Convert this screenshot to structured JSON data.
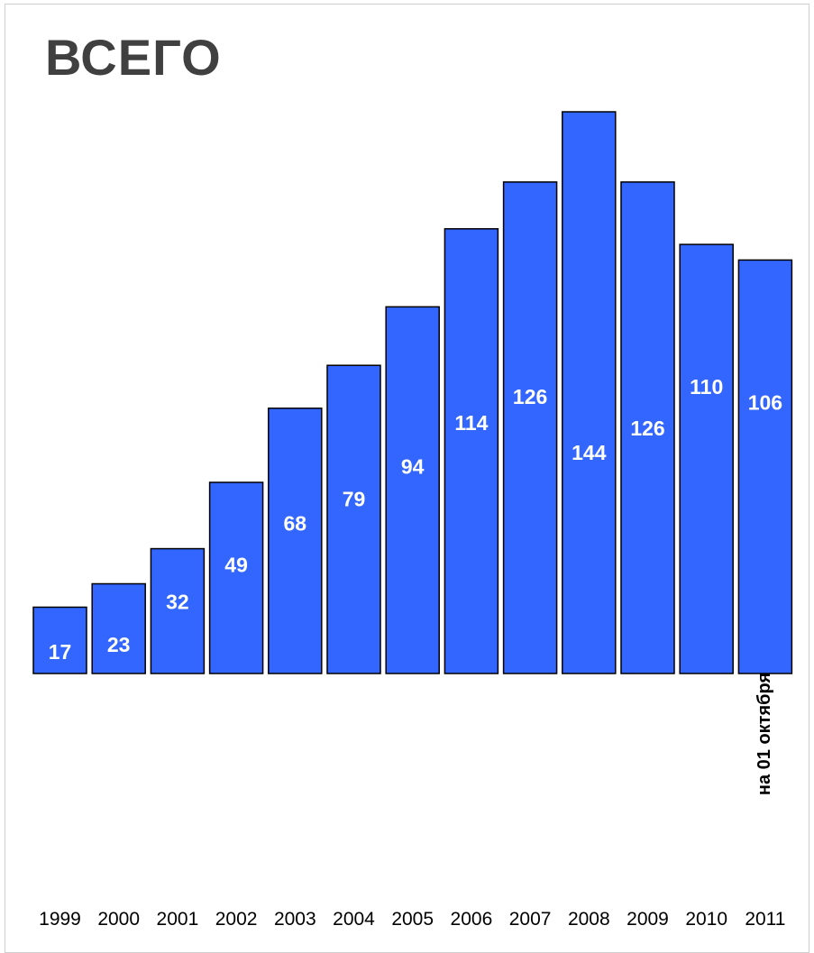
{
  "chart_data": {
    "type": "bar",
    "title": "ВСЕГО",
    "categories": [
      "1999",
      "2000",
      "2001",
      "2002",
      "2003",
      "2004",
      "2005",
      "2006",
      "2007",
      "2008",
      "2009",
      "2010",
      "2011"
    ],
    "values": [
      17,
      23,
      32,
      49,
      68,
      79,
      94,
      114,
      126,
      144,
      126,
      110,
      106
    ],
    "data_labels": [
      "17",
      "23",
      "32",
      "49",
      "68",
      "79",
      "94",
      "114",
      "126",
      "144",
      "126",
      "110",
      "106"
    ],
    "annotations": [
      {
        "category": "2011",
        "text": "на 01 октября"
      }
    ],
    "xlabel": "",
    "ylabel": "",
    "ylim": [
      0,
      144
    ],
    "grid": false,
    "legend": "none",
    "bar_color": "#3366FF",
    "bar_edge_color": "#000000",
    "label_color": "#FFFFFF",
    "annotation_color": "#000000"
  }
}
